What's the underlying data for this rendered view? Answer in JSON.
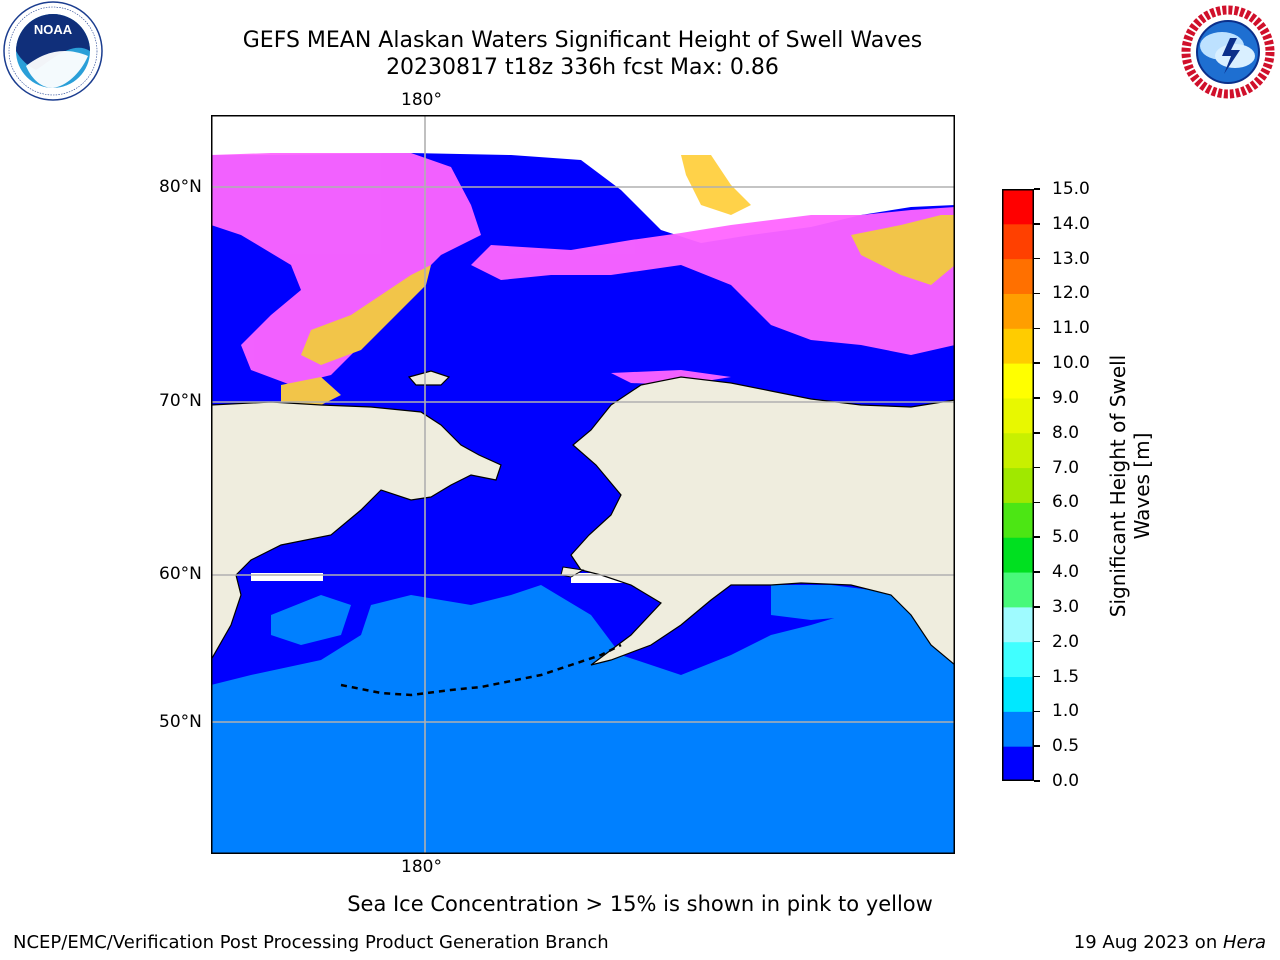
{
  "header": {
    "title_line1": "GEFS MEAN Alaskan Waters Significant Height of Swell Waves",
    "title_line2": "20230817 t18z 336h fcst   Max: 0.86"
  },
  "logos": {
    "left": {
      "name": "NOAA",
      "ring_text": "NATIONAL OCEANIC AND ATMOSPHERIC ADMINISTRATION · U.S. DEPARTMENT OF COMMERCE"
    },
    "right": {
      "name": "NATIONAL WEATHER SERVICE"
    }
  },
  "map": {
    "lon_label_top": "180°",
    "lon_label_bottom": "180°",
    "lat_labels": [
      "80°N",
      "70°N",
      "60°N",
      "50°N"
    ],
    "colors": {
      "ocean_low": "#0000ff",
      "ocean_mid": "#0080ff",
      "land": "#efedde",
      "ice_pink": "#ff66ff",
      "ice_yellow": "#ffd040",
      "gridline": "#b0b0b0"
    }
  },
  "colorbar": {
    "label": "Significant Height of Swell Waves [m]",
    "label_line1": "Significant Height of Swell",
    "label_line2": "Waves [m]",
    "ticks": [
      "0.0",
      "0.5",
      "1.0",
      "1.5",
      "2.0",
      "3.0",
      "4.0",
      "5.0",
      "6.0",
      "7.0",
      "8.0",
      "9.0",
      "10.0",
      "11.0",
      "12.0",
      "13.0",
      "14.0",
      "15.0"
    ],
    "colors": [
      "#0000ff",
      "#0080ff",
      "#00e8ff",
      "#40ffff",
      "#9ffbff",
      "#48f97a",
      "#00e020",
      "#4ce614",
      "#a0e800",
      "#c8f000",
      "#e8f800",
      "#ffff00",
      "#ffcc00",
      "#ff9e00",
      "#ff7000",
      "#ff4000",
      "#ff0000"
    ]
  },
  "annotation": "Sea Ice Concentration > 15% is shown in pink to yellow",
  "footer": {
    "left": "NCEP/EMC/Verification Post Processing Product Generation Branch",
    "right_prefix": "19 Aug 2023 on ",
    "right_host": "Hera"
  }
}
